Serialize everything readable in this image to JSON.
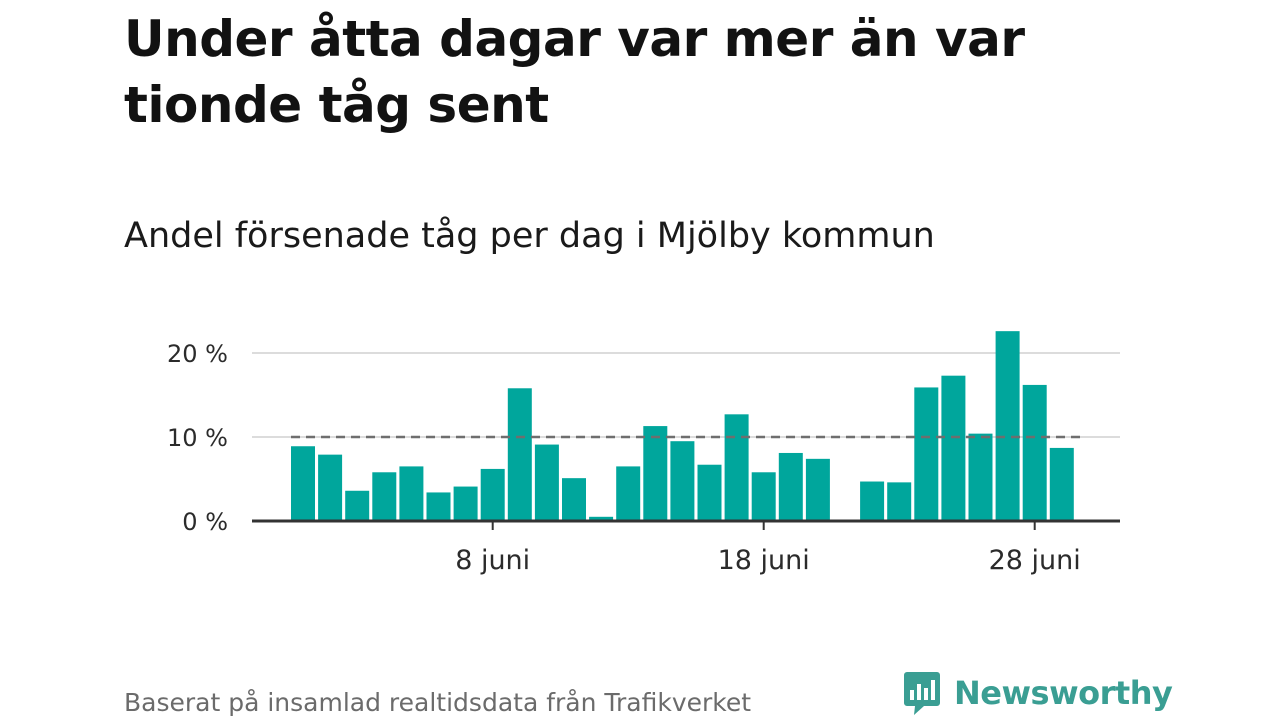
{
  "title": "Under åtta dagar var mer än var tionde tåg sent",
  "subtitle": "Andel försenade tåg per dag i Mjölby kommun",
  "source": "Baserat på insamlad realtidsdata från Trafikverket",
  "brand": {
    "name": "Newsworthy",
    "logo_icon": "bar-chart-speech-bubble-icon",
    "color": "#3a9e93"
  },
  "chart_data": {
    "type": "bar",
    "x_unit": "day of June",
    "x": [
      1,
      2,
      3,
      4,
      5,
      6,
      7,
      8,
      9,
      10,
      11,
      12,
      13,
      14,
      15,
      16,
      17,
      18,
      19,
      20,
      21,
      22,
      23,
      24,
      25,
      26,
      27,
      28,
      29,
      30
    ],
    "values": [
      8.9,
      7.9,
      3.6,
      5.8,
      6.5,
      3.4,
      4.1,
      6.2,
      15.8,
      9.1,
      5.1,
      0.5,
      6.5,
      11.3,
      9.5,
      6.7,
      12.7,
      5.8,
      8.1,
      7.4,
      null,
      4.7,
      4.6,
      15.9,
      17.3,
      10.4,
      22.6,
      16.2,
      8.7,
      null
    ],
    "reference_line": {
      "value": 10,
      "style": "dashed"
    },
    "y_ticks": [
      {
        "value": 0,
        "label": "0 %"
      },
      {
        "value": 10,
        "label": "10 %"
      },
      {
        "value": 20,
        "label": "20 %"
      }
    ],
    "x_ticks": [
      {
        "value": 8,
        "label": "8 juni"
      },
      {
        "value": 18,
        "label": "18 juni"
      },
      {
        "value": 28,
        "label": "28 juni"
      }
    ],
    "ylim": [
      0,
      23
    ],
    "xlim": [
      0.5,
      30.5
    ],
    "grid": true,
    "colors": {
      "bar": "#00a69c",
      "reference_line": "#6e6e6e",
      "grid": "#dcdcdc",
      "axis": "#333333"
    }
  }
}
